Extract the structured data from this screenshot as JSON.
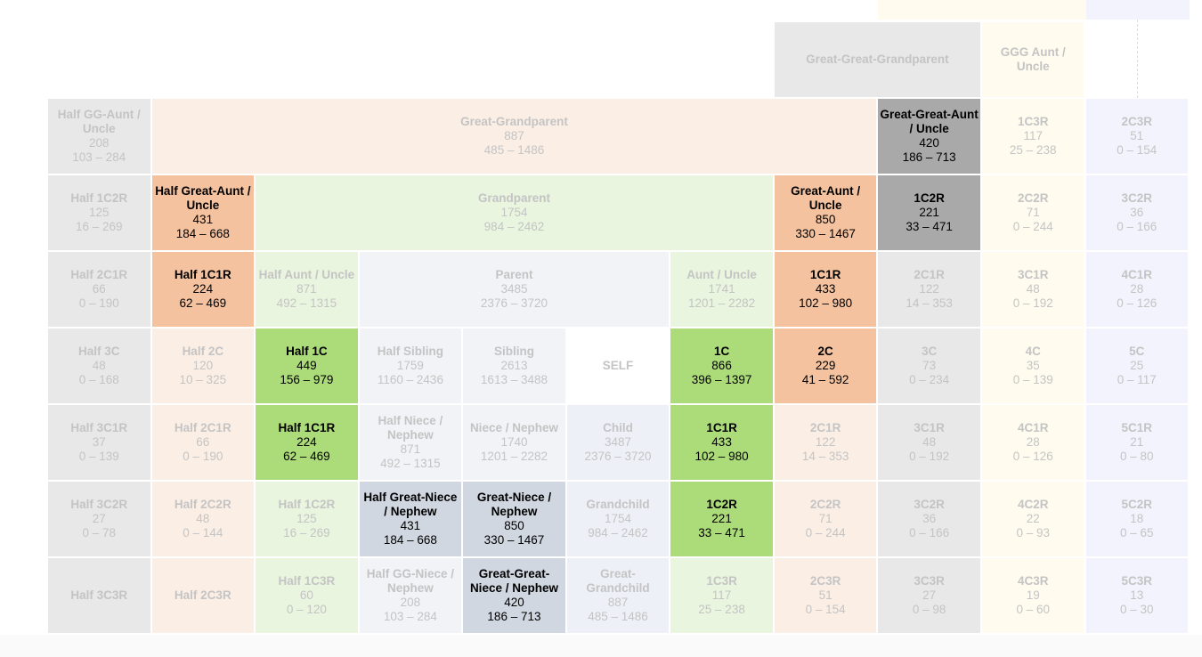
{
  "colors": {
    "grey": "#e8e8e8",
    "peach_light": "#fbeee5",
    "peach_highlight": "#f4c29f",
    "green_light": "#e9f5df",
    "green_highlight": "#acdb7a",
    "dark_grey": "#a9a9a9",
    "blue_grey": "#d1d7e0",
    "parent": "#f2f3f7",
    "child": "#edf0f7",
    "yellow": "#fffcef",
    "lavender": "#f3f3fd"
  },
  "rows": [
    [
      {
        "title": "Great-Great-Grandparent",
        "tone": "g"
      },
      {
        "title": "GGG Aunt / Uncle",
        "tone": "y"
      }
    ],
    [
      {
        "title": "Half GG-Aunt / Uncle",
        "avg": "208",
        "range": "103 – 284",
        "tone": "g"
      },
      {
        "title": "Great-Grandparent",
        "avg": "887",
        "range": "485 – 1486",
        "tone": "pl"
      },
      {
        "title": "Great-Great-Aunt / Uncle",
        "avg": "420",
        "range": "186 – 713",
        "tone": "d",
        "hi": true
      },
      {
        "title": "1C3R",
        "avg": "117",
        "range": "25 – 238",
        "tone": "y"
      },
      {
        "title": "2C3R",
        "avg": "51",
        "range": "0 – 154",
        "tone": "l"
      }
    ],
    [
      {
        "title": "Half 1C2R",
        "avg": "125",
        "range": "16 – 269",
        "tone": "g"
      },
      {
        "title": "Half Great-Aunt / Uncle",
        "avg": "431",
        "range": "184 – 668",
        "tone": "ph",
        "hi": true
      },
      {
        "title": "Grandparent",
        "avg": "1754",
        "range": "984 – 2462",
        "tone": "gl"
      },
      {
        "title": "Great-Aunt / Uncle",
        "avg": "850",
        "range": "330 – 1467",
        "tone": "ph",
        "hi": true
      },
      {
        "title": "1C2R",
        "avg": "221",
        "range": "33 – 471",
        "tone": "d",
        "hi": true
      },
      {
        "title": "2C2R",
        "avg": "71",
        "range": "0 – 244",
        "tone": "y"
      },
      {
        "title": "3C2R",
        "avg": "36",
        "range": "0 – 166",
        "tone": "l"
      }
    ],
    [
      {
        "title": "Half 2C1R",
        "avg": "66",
        "range": "0 – 190",
        "tone": "g"
      },
      {
        "title": "Half 1C1R",
        "avg": "224",
        "range": "62 – 469",
        "tone": "ph",
        "hi": true
      },
      {
        "title": "Half Aunt / Uncle",
        "avg": "871",
        "range": "492 – 1315",
        "tone": "gl"
      },
      {
        "title": "Parent",
        "avg": "3485",
        "range": "2376 – 3720",
        "tone": "p"
      },
      {
        "title": "Aunt / Uncle",
        "avg": "1741",
        "range": "1201 – 2282",
        "tone": "gl"
      },
      {
        "title": "1C1R",
        "avg": "433",
        "range": "102 – 980",
        "tone": "ph",
        "hi": true
      },
      {
        "title": "2C1R",
        "avg": "122",
        "range": "14 – 353",
        "tone": "g"
      },
      {
        "title": "3C1R",
        "avg": "48",
        "range": "0 – 192",
        "tone": "y"
      },
      {
        "title": "4C1R",
        "avg": "28",
        "range": "0 – 126",
        "tone": "l"
      }
    ],
    [
      {
        "title": "Half 3C",
        "avg": "48",
        "range": "0 – 168",
        "tone": "g"
      },
      {
        "title": "Half 2C",
        "avg": "120",
        "range": "10 – 325",
        "tone": "pl"
      },
      {
        "title": "Half 1C",
        "avg": "449",
        "range": "156 – 979",
        "tone": "gh",
        "hi": true
      },
      {
        "title": "Half Sibling",
        "avg": "1759",
        "range": "1160 – 2436",
        "tone": "p"
      },
      {
        "title": "Sibling",
        "avg": "2613",
        "range": "1613 – 3488",
        "tone": "p"
      },
      {
        "title": "SELF",
        "tone": "w"
      },
      {
        "title": "1C",
        "avg": "866",
        "range": "396 – 1397",
        "tone": "gh",
        "hi": true
      },
      {
        "title": "2C",
        "avg": "229",
        "range": "41 – 592",
        "tone": "ph",
        "hi": true
      },
      {
        "title": "3C",
        "avg": "73",
        "range": "0 – 234",
        "tone": "g"
      },
      {
        "title": "4C",
        "avg": "35",
        "range": "0 – 139",
        "tone": "y"
      },
      {
        "title": "5C",
        "avg": "25",
        "range": "0 – 117",
        "tone": "l"
      }
    ],
    [
      {
        "title": "Half 3C1R",
        "avg": "37",
        "range": "0 – 139",
        "tone": "g"
      },
      {
        "title": "Half 2C1R",
        "avg": "66",
        "range": "0 – 190",
        "tone": "pl"
      },
      {
        "title": "Half 1C1R",
        "avg": "224",
        "range": "62 – 469",
        "tone": "gh",
        "hi": true
      },
      {
        "title": "Half Niece / Nephew",
        "avg": "871",
        "range": "492 – 1315",
        "tone": "p"
      },
      {
        "title": "Niece / Nephew",
        "avg": "1740",
        "range": "1201 – 2282",
        "tone": "p"
      },
      {
        "title": "Child",
        "avg": "3487",
        "range": "2376 – 3720",
        "tone": "c"
      },
      {
        "title": "1C1R",
        "avg": "433",
        "range": "102 – 980",
        "tone": "gh",
        "hi": true
      },
      {
        "title": "2C1R",
        "avg": "122",
        "range": "14 – 353",
        "tone": "pl"
      },
      {
        "title": "3C1R",
        "avg": "48",
        "range": "0 – 192",
        "tone": "g"
      },
      {
        "title": "4C1R",
        "avg": "28",
        "range": "0 – 126",
        "tone": "y"
      },
      {
        "title": "5C1R",
        "avg": "21",
        "range": "0 – 80",
        "tone": "l"
      }
    ],
    [
      {
        "title": "Half 3C2R",
        "avg": "27",
        "range": "0 – 78",
        "tone": "g"
      },
      {
        "title": "Half 2C2R",
        "avg": "48",
        "range": "0 – 144",
        "tone": "pl"
      },
      {
        "title": "Half 1C2R",
        "avg": "125",
        "range": "16 – 269",
        "tone": "gl"
      },
      {
        "title": "Half Great-Niece / Nephew",
        "avg": "431",
        "range": "184 – 668",
        "tone": "b",
        "hi": true
      },
      {
        "title": "Great-Niece / Nephew",
        "avg": "850",
        "range": "330 – 1467",
        "tone": "b",
        "hi": true
      },
      {
        "title": "Grandchild",
        "avg": "1754",
        "range": "984 – 2462",
        "tone": "c"
      },
      {
        "title": "1C2R",
        "avg": "221",
        "range": "33 – 471",
        "tone": "gh",
        "hi": true
      },
      {
        "title": "2C2R",
        "avg": "71",
        "range": "0 – 244",
        "tone": "pl"
      },
      {
        "title": "3C2R",
        "avg": "36",
        "range": "0 – 166",
        "tone": "g"
      },
      {
        "title": "4C2R",
        "avg": "22",
        "range": "0 – 93",
        "tone": "y"
      },
      {
        "title": "5C2R",
        "avg": "18",
        "range": "0 – 65",
        "tone": "l"
      }
    ],
    [
      {
        "title": "Half 3C3R",
        "tone": "g"
      },
      {
        "title": "Half 2C3R",
        "tone": "pl"
      },
      {
        "title": "Half 1C3R",
        "avg": "60",
        "range": "0 – 120",
        "tone": "gl"
      },
      {
        "title": "Half GG-Niece / Nephew",
        "avg": "208",
        "range": "103 – 284",
        "tone": "p"
      },
      {
        "title": "Great-Great-Niece / Nephew",
        "avg": "420",
        "range": "186 – 713",
        "tone": "b",
        "hi": true
      },
      {
        "title": "Great-Grandchild",
        "avg": "887",
        "range": "485 – 1486",
        "tone": "c"
      },
      {
        "title": "1C3R",
        "avg": "117",
        "range": "25 – 238",
        "tone": "gl"
      },
      {
        "title": "2C3R",
        "avg": "51",
        "range": "0 – 154",
        "tone": "pl"
      },
      {
        "title": "3C3R",
        "avg": "27",
        "range": "0 – 98",
        "tone": "g"
      },
      {
        "title": "4C3R",
        "avg": "19",
        "range": "0 – 60",
        "tone": "y"
      },
      {
        "title": "5C3R",
        "avg": "13",
        "range": "0 – 30",
        "tone": "l"
      }
    ]
  ]
}
